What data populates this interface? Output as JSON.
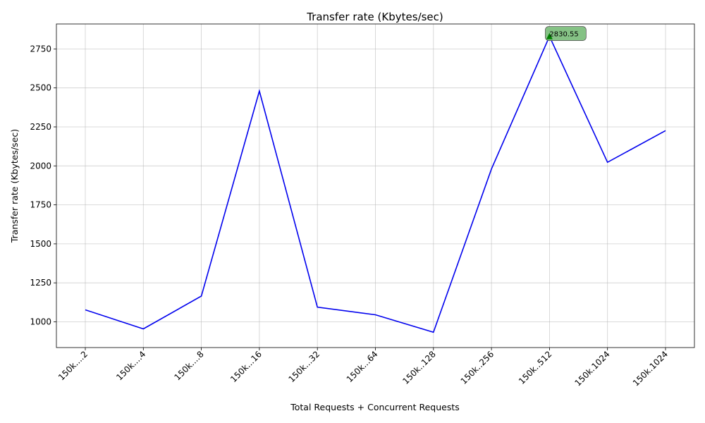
{
  "chart_data": {
    "type": "line",
    "title": "Transfer rate (Kbytes/sec)",
    "xlabel": "Total Requests + Concurrent Requests",
    "ylabel": "Transfer rate (Kbytes/sec)",
    "categories": [
      "150k....2",
      "150k....4",
      "150k....8",
      "150k...16",
      "150k...32",
      "150k...64",
      "150k..128",
      "150k..256",
      "150k..512",
      "150k.1024",
      "150k.1024"
    ],
    "series": [
      {
        "values": [
          1077,
          955,
          1165,
          2480,
          1094,
          1045,
          933,
          1980,
          2830.55,
          2023,
          2226
        ],
        "color": "#0000ee"
      }
    ],
    "ylim": [
      835,
      2910
    ],
    "yticks": [
      1000,
      1250,
      1500,
      1750,
      2000,
      2250,
      2500,
      2750
    ],
    "grid": true,
    "annotation": {
      "index": 8,
      "text": "2830.55",
      "marker_color": "#008000",
      "box_color": "#7fbf7f"
    }
  }
}
